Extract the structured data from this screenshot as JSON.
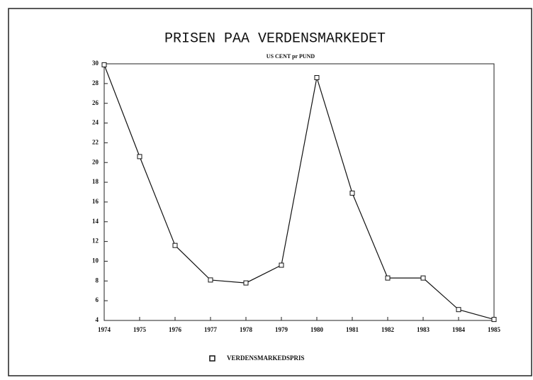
{
  "chart_data": {
    "type": "line",
    "title": "PRISEN PAA VERDENSMARKEDET",
    "subtitle": "US CENT pr PUND",
    "x": [
      1974,
      1975,
      1976,
      1977,
      1978,
      1979,
      1980,
      1981,
      1982,
      1983,
      1984,
      1985
    ],
    "series": [
      {
        "name": "VERDENSMARKEDSPRIS",
        "color": "#111111",
        "values": [
          29.9,
          20.6,
          11.6,
          8.1,
          7.8,
          9.6,
          28.6,
          16.9,
          8.3,
          8.3,
          5.1,
          4.1
        ]
      }
    ],
    "xlim": [
      1974,
      1985
    ],
    "xticks": [
      1974,
      1975,
      1976,
      1977,
      1978,
      1979,
      1980,
      1981,
      1982,
      1983,
      1984,
      1985
    ],
    "ylim": [
      4,
      30
    ],
    "yticks": [
      4,
      6,
      8,
      10,
      12,
      14,
      16,
      18,
      20,
      22,
      24,
      26,
      28,
      30
    ]
  }
}
